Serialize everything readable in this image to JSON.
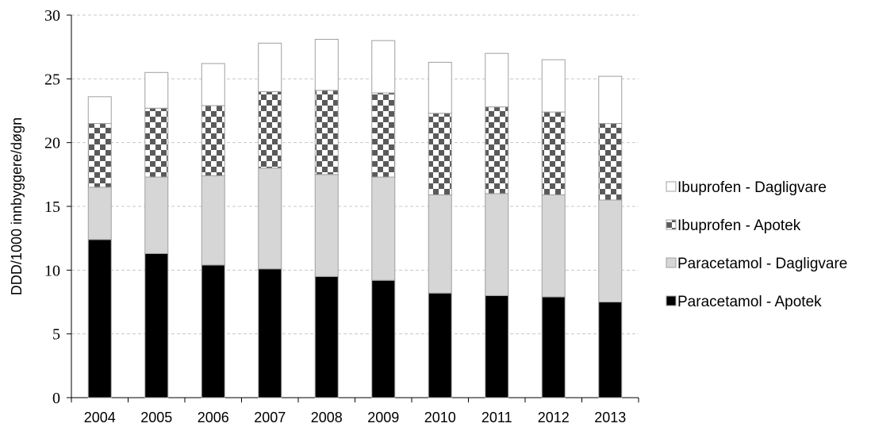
{
  "chart_data": {
    "type": "bar",
    "stacked": true,
    "title": "",
    "xlabel": "",
    "ylabel": "DDD/1000 innbyggere/døgn",
    "ylim": [
      0,
      30
    ],
    "yticks": [
      0,
      5,
      10,
      15,
      20,
      25,
      30
    ],
    "grid": true,
    "legend_position": "right",
    "categories": [
      "2004",
      "2005",
      "2006",
      "2007",
      "2008",
      "2009",
      "2010",
      "2011",
      "2012",
      "2013"
    ],
    "series": [
      {
        "name": "Paracetamol - Apotek",
        "pattern": "solid-black",
        "values": [
          12.4,
          11.3,
          10.4,
          10.1,
          9.5,
          9.2,
          8.2,
          8.0,
          7.9,
          7.5
        ]
      },
      {
        "name": "Paracetamol - Dagligvare",
        "pattern": "solid-lightgray",
        "values": [
          4.1,
          6.0,
          7.0,
          7.9,
          8.0,
          8.1,
          7.7,
          8.0,
          8.0,
          8.0
        ]
      },
      {
        "name": "Ibuprofen - Apotek",
        "pattern": "checkerboard",
        "values": [
          5.0,
          5.4,
          5.5,
          6.0,
          6.6,
          6.6,
          6.4,
          6.8,
          6.5,
          6.0
        ]
      },
      {
        "name": "Ibuprofen - Dagligvare",
        "pattern": "solid-white",
        "values": [
          2.1,
          2.8,
          3.3,
          3.8,
          4.0,
          4.1,
          4.0,
          4.2,
          4.1,
          3.7
        ]
      }
    ],
    "legend_order": [
      "Ibuprofen - Dagligvare",
      "Ibuprofen - Apotek",
      "Paracetamol - Dagligvare",
      "Paracetamol - Apotek"
    ],
    "colors": {
      "black": "#000000",
      "lightgray": "#d6d6d6",
      "checker_dark": "#5a5a5a",
      "checker_light": "#ffffff",
      "white": "#ffffff",
      "bar_outline": "#a0a0a0",
      "grid": "#c8c8c8"
    }
  }
}
